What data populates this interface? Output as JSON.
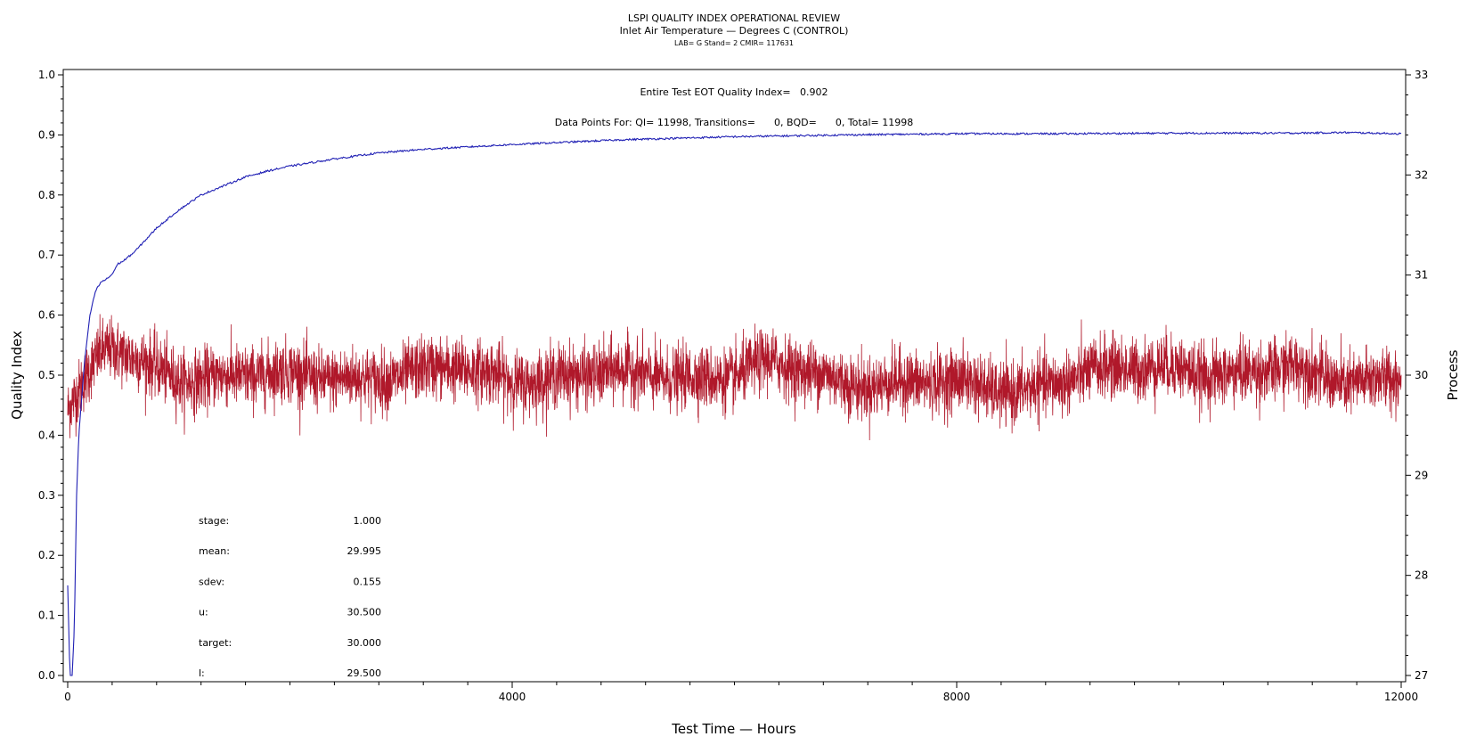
{
  "chart_data": {
    "type": "line",
    "title": "LSPI QUALITY INDEX OPERATIONAL REVIEW",
    "subtitle": "Inlet Air Temperature — Degrees C (CONTROL)",
    "subtitle2": "LAB= G Stand= 2 CMIR= 117631",
    "annotation1": "Entire Test EOT Quality Index=   0.902",
    "annotation2": "Data Points For: QI= 11998, Transitions=      0, BQD=      0, Total= 11998",
    "xlabel": "Test Time — Hours",
    "ylabel": "Quality Index",
    "y2label": "Process",
    "xlim": [
      0,
      12000
    ],
    "ylim": [
      0,
      1.0
    ],
    "y2lim": [
      27,
      33
    ],
    "x_ticks": [
      "0",
      "4000",
      "8000",
      "12000"
    ],
    "y_ticks": [
      "0.0",
      "0.1",
      "0.2",
      "0.3",
      "0.4",
      "0.5",
      "0.6",
      "0.7",
      "0.8",
      "0.9",
      "1.0"
    ],
    "y2_ticks": [
      "27",
      "28",
      "29",
      "30",
      "31",
      "32",
      "33"
    ],
    "grid": false,
    "series": [
      {
        "axis": "left",
        "color": "#1f1fb4",
        "x": [
          0,
          20,
          40,
          60,
          80,
          100,
          150,
          200,
          250,
          300,
          350,
          400,
          450,
          500,
          600,
          700,
          800,
          1000,
          1200,
          1400,
          1600,
          1800,
          2000,
          2400,
          2800,
          3200,
          3600,
          4000,
          5000,
          6000,
          7000,
          8000,
          9000,
          10000,
          11000,
          11500,
          12000
        ],
        "y": [
          0.15,
          0.0,
          0.0,
          0.08,
          0.3,
          0.4,
          0.52,
          0.6,
          0.64,
          0.655,
          0.66,
          0.668,
          0.685,
          0.69,
          0.705,
          0.725,
          0.745,
          0.775,
          0.8,
          0.815,
          0.83,
          0.84,
          0.848,
          0.86,
          0.87,
          0.876,
          0.88,
          0.884,
          0.892,
          0.897,
          0.9,
          0.902,
          0.902,
          0.903,
          0.903,
          0.904,
          0.902
        ]
      },
      {
        "axis": "right",
        "color": "#b0182a",
        "x": [
          0,
          100,
          200,
          300,
          400,
          500,
          700,
          1000,
          2000,
          3000,
          3500,
          4000,
          5000,
          6000,
          6300,
          7000,
          8000,
          8500,
          9000,
          10000,
          10500,
          11000,
          11500,
          12000
        ],
        "mean": [
          29.65,
          29.8,
          30.0,
          30.2,
          30.25,
          30.2,
          30.1,
          30.0,
          29.98,
          30.0,
          30.05,
          29.98,
          30.0,
          30.0,
          30.1,
          29.95,
          29.9,
          29.85,
          29.98,
          30.1,
          30.0,
          30.05,
          29.95,
          30.0
        ],
        "noise_sdev": 0.155
      }
    ],
    "stats": [
      {
        "label": "stage:",
        "value": "1.000"
      },
      {
        "label": "mean:",
        "value": "29.995"
      },
      {
        "label": "sdev:",
        "value": "0.155"
      },
      {
        "label": "u:",
        "value": "30.500"
      },
      {
        "label": "target:",
        "value": "30.000"
      },
      {
        "label": "l:",
        "value": "29.500"
      }
    ]
  }
}
